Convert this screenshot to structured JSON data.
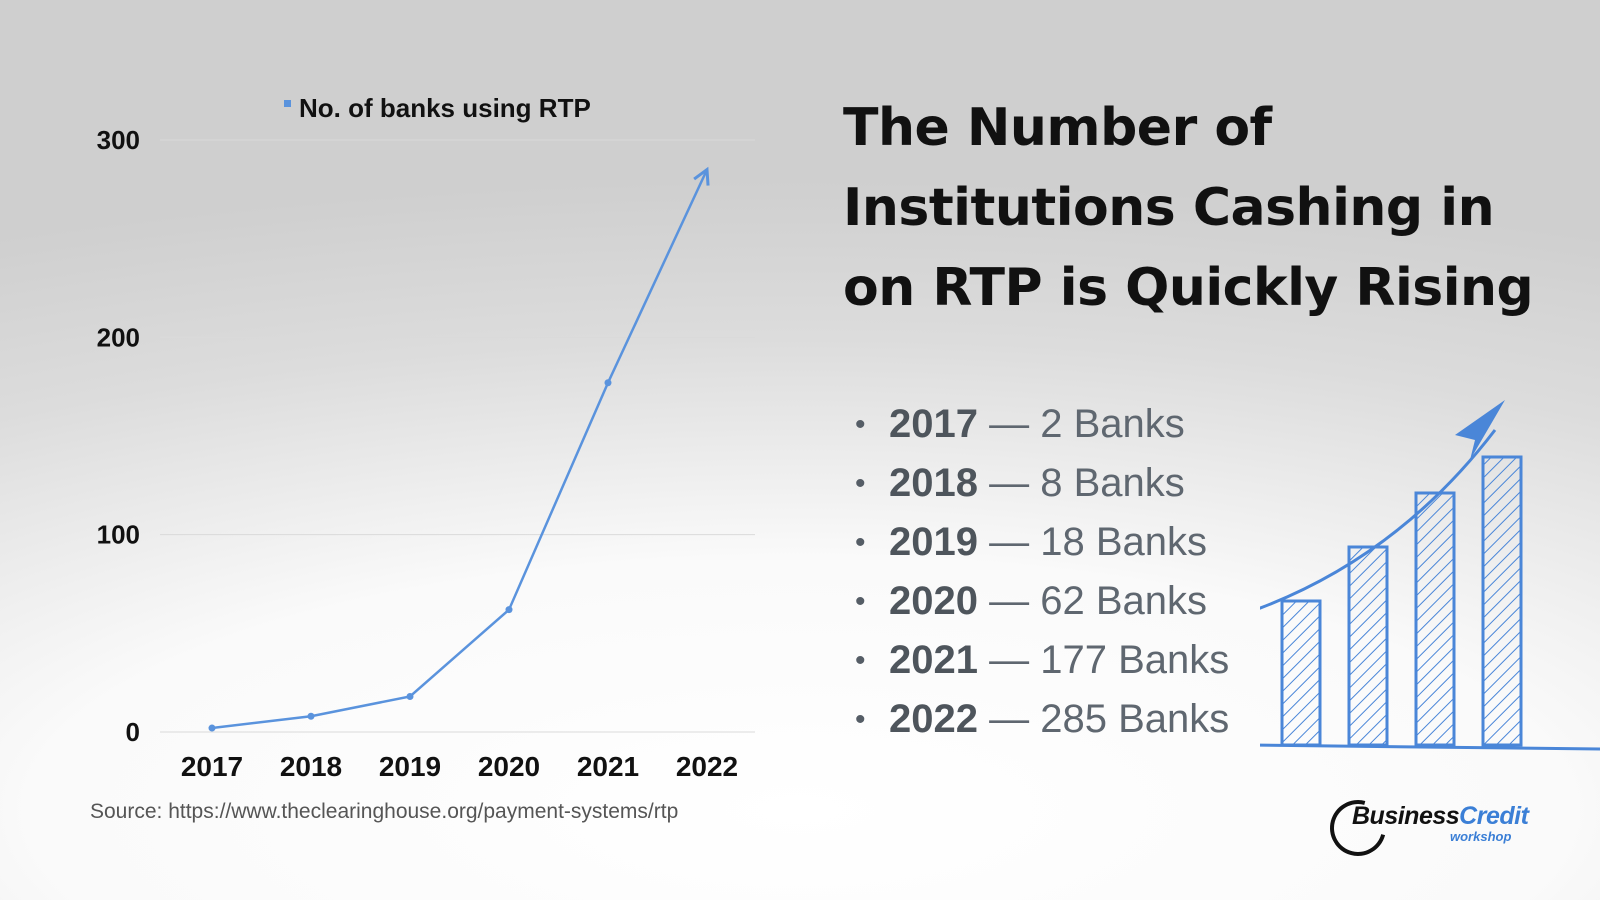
{
  "chart_data": {
    "type": "line",
    "title": "",
    "xlabel": "",
    "ylabel": "",
    "categories": [
      "2017",
      "2018",
      "2019",
      "2020",
      "2021",
      "2022"
    ],
    "series": [
      {
        "name": "No. of banks using RTP",
        "values": [
          2,
          8,
          18,
          62,
          177,
          285
        ],
        "color": "#5a93dd"
      }
    ],
    "ylim": [
      0,
      300
    ],
    "yticks": [
      "0",
      "100",
      "200",
      "300"
    ],
    "grid": true,
    "legend": "top",
    "last_point_marker": "arrow"
  },
  "source": "Source: https://www.theclearinghouse.org/payment-systems/rtp",
  "headline": "The Number of Institutions Cashing in on RTP is Quickly Rising",
  "facts": [
    {
      "year": "2017",
      "count": "— 2 Banks"
    },
    {
      "year": "2018",
      "count": "— 8 Banks"
    },
    {
      "year": "2019",
      "count": "— 18 Banks"
    },
    {
      "year": "2020",
      "count": "— 62 Banks"
    },
    {
      "year": "2021",
      "count": "— 177 Banks"
    },
    {
      "year": "2022",
      "count": "— 285 Banks"
    }
  ],
  "bullet_glyph": "•",
  "decoration": {
    "name": "sketched-growth-bars",
    "bar_levels": [
      0.4,
      0.55,
      0.7,
      0.8
    ],
    "color": "#4a86d8"
  },
  "logo": {
    "name": "business-credit-workshop-logo",
    "word1": "Business",
    "word2": "Credit",
    "sub": "workshop"
  }
}
